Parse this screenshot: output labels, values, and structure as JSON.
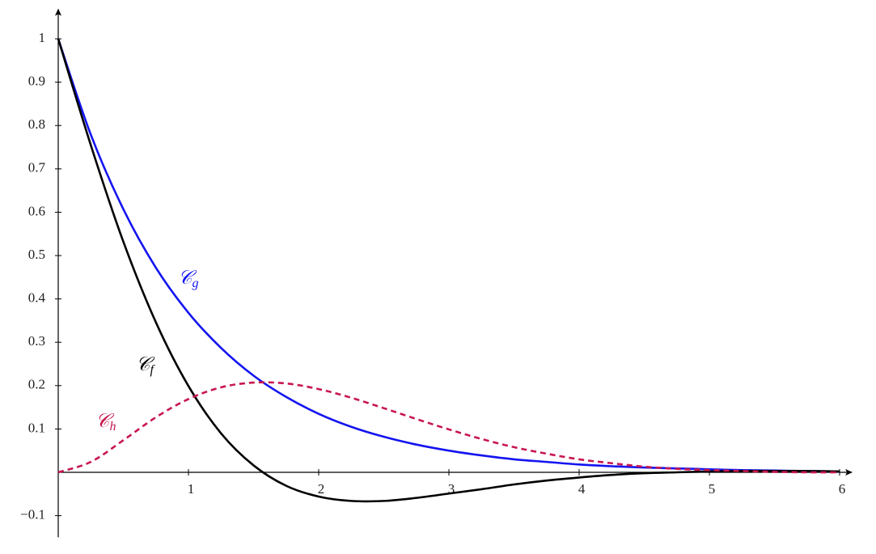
{
  "chart_data": {
    "type": "line",
    "x": [
      0,
      0.25,
      0.5,
      0.75,
      1,
      1.25,
      1.5,
      1.75,
      2,
      2.25,
      2.5,
      2.75,
      3,
      3.25,
      3.5,
      3.75,
      4,
      4.25,
      4.5,
      4.75,
      5,
      5.25,
      5.5,
      5.75,
      6
    ],
    "series": [
      {
        "label": {
          "symbol": "𝒞",
          "sub": "g"
        },
        "color": "#1414f0",
        "dashed": false,
        "values": [
          1,
          0.779,
          0.607,
          0.472,
          0.368,
          0.287,
          0.223,
          0.174,
          0.135,
          0.105,
          0.082,
          0.064,
          0.05,
          0.039,
          0.03,
          0.024,
          0.018,
          0.014,
          0.011,
          0.009,
          0.007,
          0.005,
          0.004,
          0.003,
          0.002
        ]
      },
      {
        "label": {
          "symbol": "𝒞",
          "sub": "f"
        },
        "color": "#000000",
        "dashed": false,
        "values": [
          1,
          0.755,
          0.532,
          0.346,
          0.199,
          0.09,
          0.016,
          -0.031,
          -0.056,
          -0.066,
          -0.066,
          -0.059,
          -0.049,
          -0.039,
          -0.028,
          -0.019,
          -0.012,
          -0.006,
          -0.002,
          0,
          0.002,
          0.003,
          0.003,
          0.003,
          0.002
        ]
      },
      {
        "label": {
          "symbol": "𝒞",
          "sub": "h"
        },
        "color": "#c8174e",
        "dashed": true,
        "values": [
          0,
          0.024,
          0.074,
          0.127,
          0.169,
          0.196,
          0.207,
          0.205,
          0.192,
          0.172,
          0.148,
          0.123,
          0.099,
          0.077,
          0.058,
          0.043,
          0.03,
          0.021,
          0.013,
          0.008,
          0.005,
          0.003,
          0.001,
          0,
          0
        ]
      }
    ],
    "xlim": [
      0,
      6.1
    ],
    "ylim": [
      -0.15,
      1.07
    ],
    "xticks": [
      1,
      2,
      3,
      4,
      5,
      6
    ],
    "yticks": [
      {
        "value": -0.1,
        "label": "−0.1"
      },
      0.1,
      0.2,
      0.3,
      0.4,
      0.5,
      0.6,
      0.7,
      0.8,
      0.9,
      1
    ],
    "grid": false
  }
}
